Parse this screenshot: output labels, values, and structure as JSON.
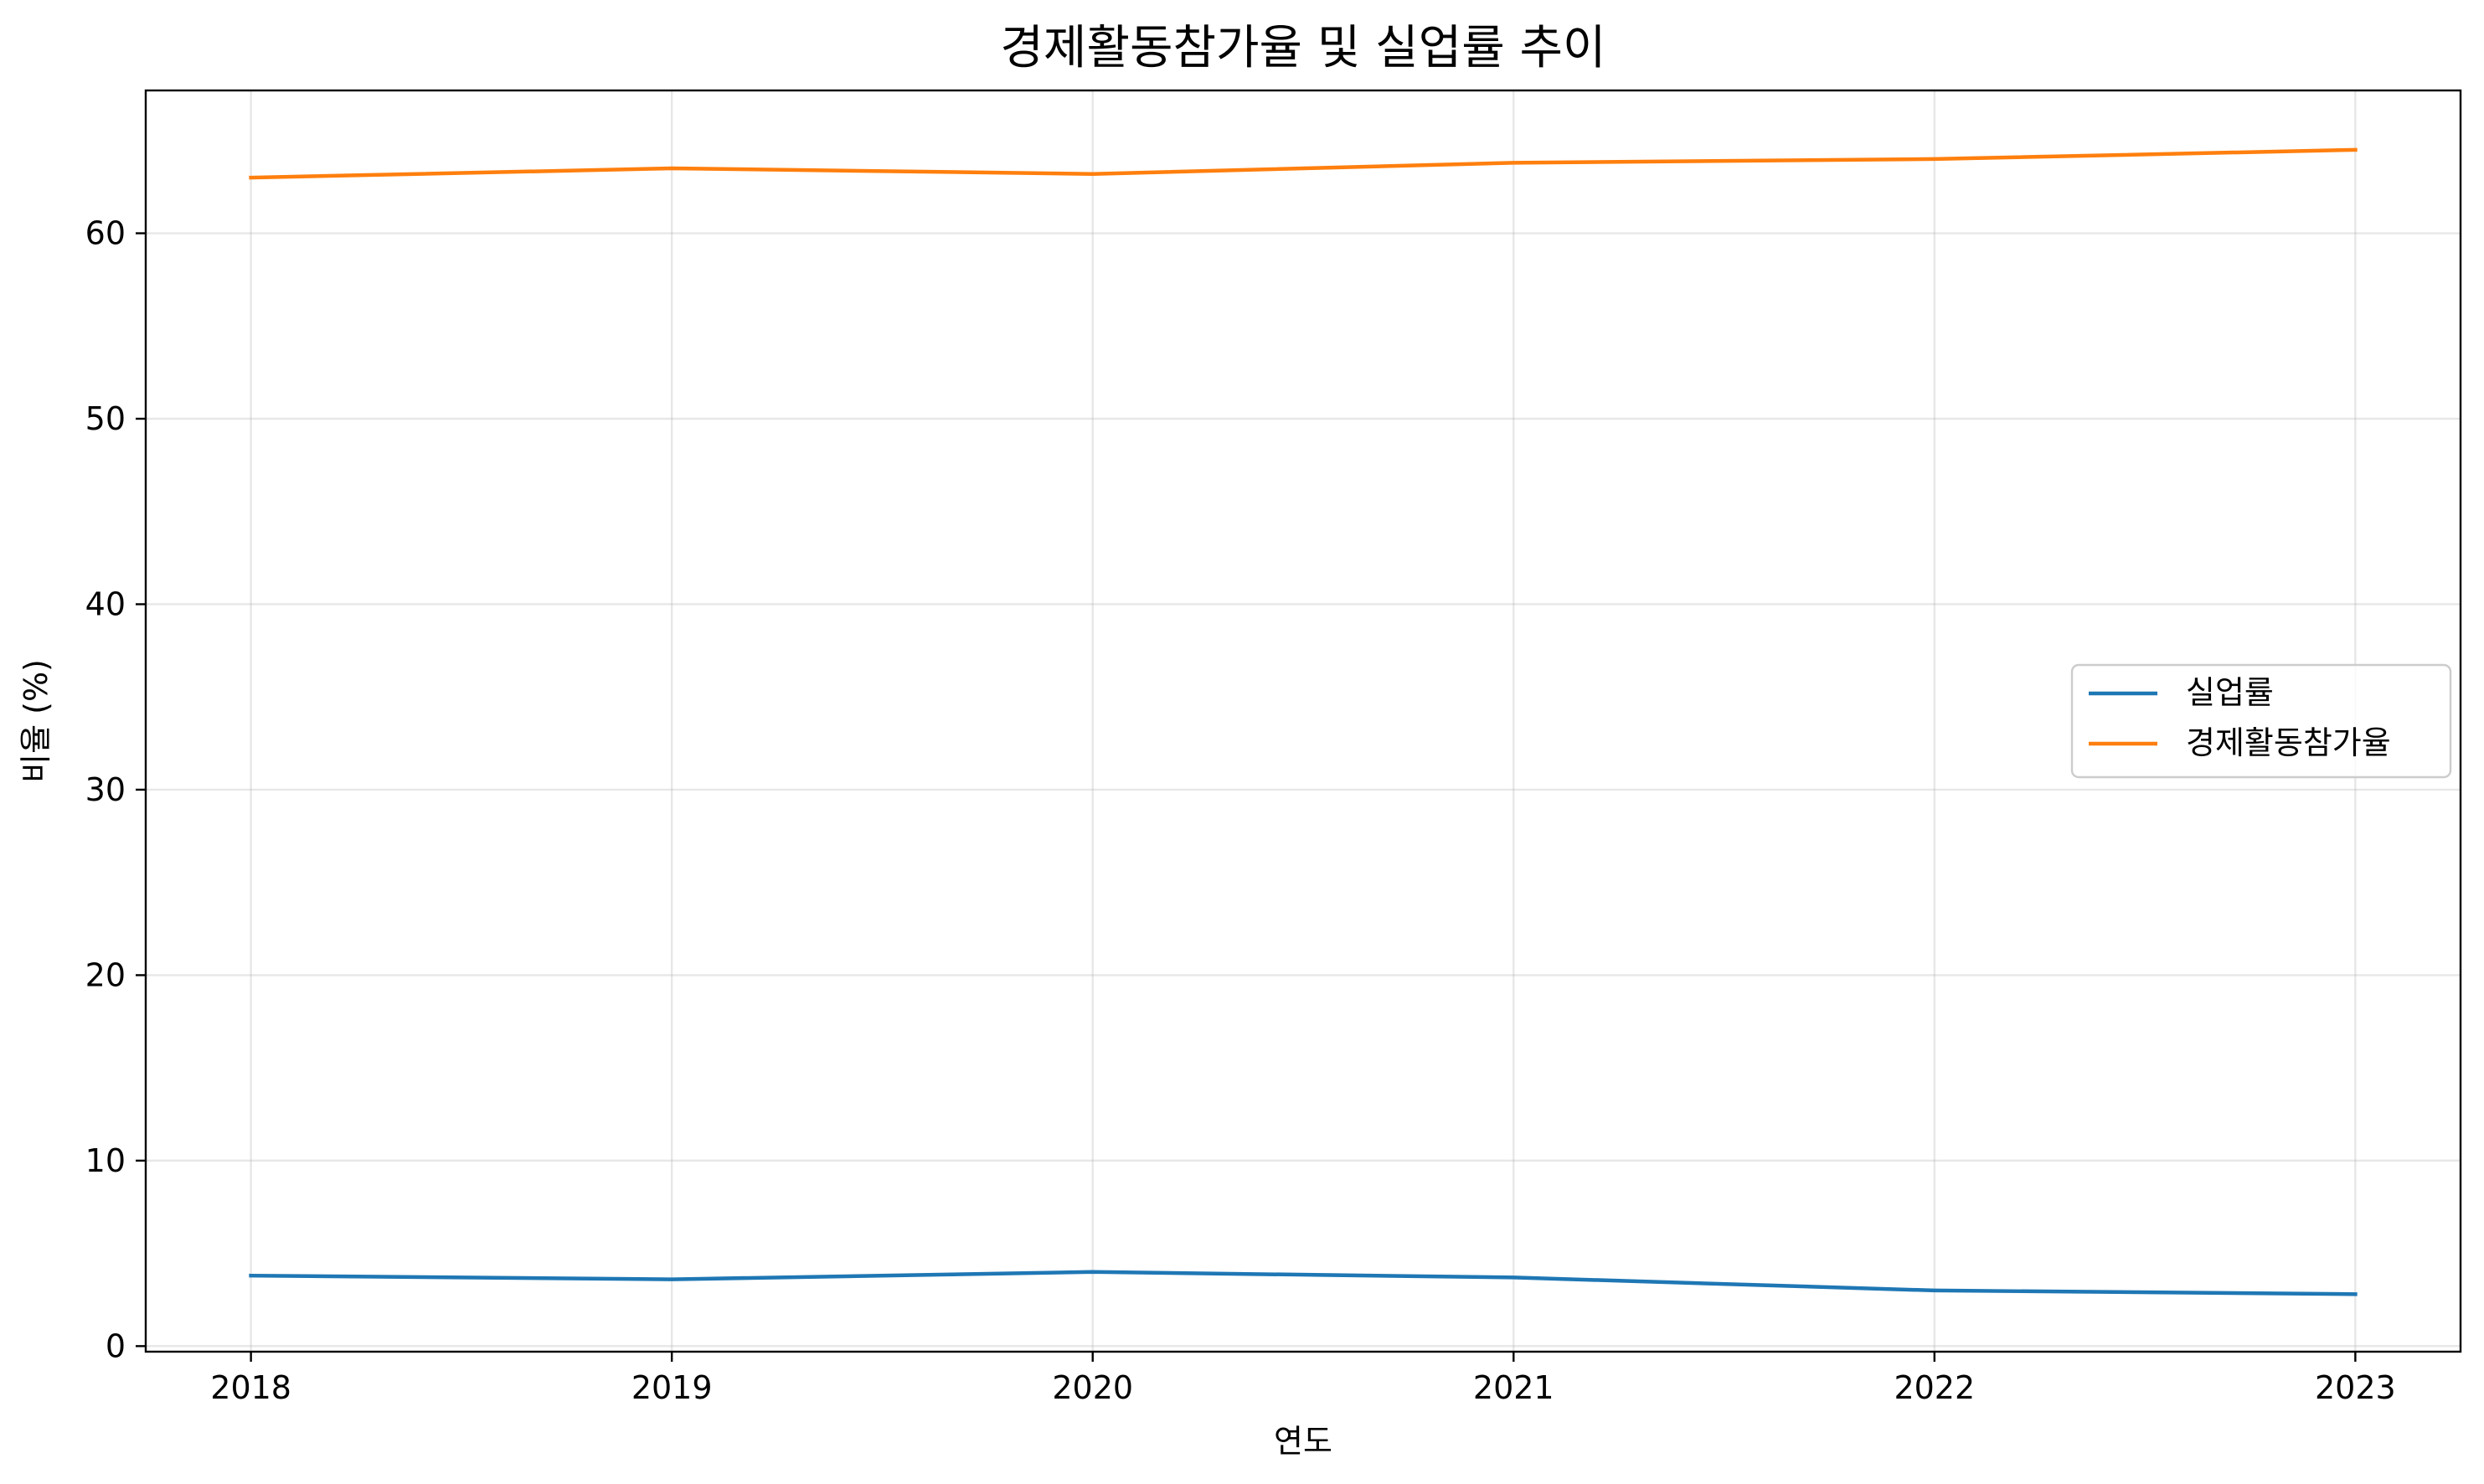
{
  "chart_data": {
    "type": "line",
    "title": "경제활동참가율 및 실업률 추이",
    "xlabel": "연도",
    "ylabel": "비율 (%)",
    "x": [
      2018,
      2019,
      2020,
      2021,
      2022,
      2023
    ],
    "x_tick_labels": [
      "2018",
      "2019",
      "2020",
      "2021",
      "2022",
      "2023"
    ],
    "xlim": [
      2017.75,
      2023.25
    ],
    "y_ticks": [
      0,
      10,
      20,
      30,
      40,
      50,
      60
    ],
    "y_tick_labels": [
      "0",
      "10",
      "20",
      "30",
      "40",
      "50",
      "60"
    ],
    "ylim": [
      -0.3,
      67.7
    ],
    "grid": true,
    "legend_position": "center-right",
    "series": [
      {
        "name": "실업률",
        "color": "#1f77b4",
        "values": [
          3.8,
          3.6,
          4.0,
          3.7,
          3.0,
          2.8
        ]
      },
      {
        "name": "경제활동참가율",
        "color": "#ff7f0e",
        "values": [
          63.0,
          63.5,
          63.2,
          63.8,
          64.0,
          64.5
        ]
      }
    ]
  }
}
